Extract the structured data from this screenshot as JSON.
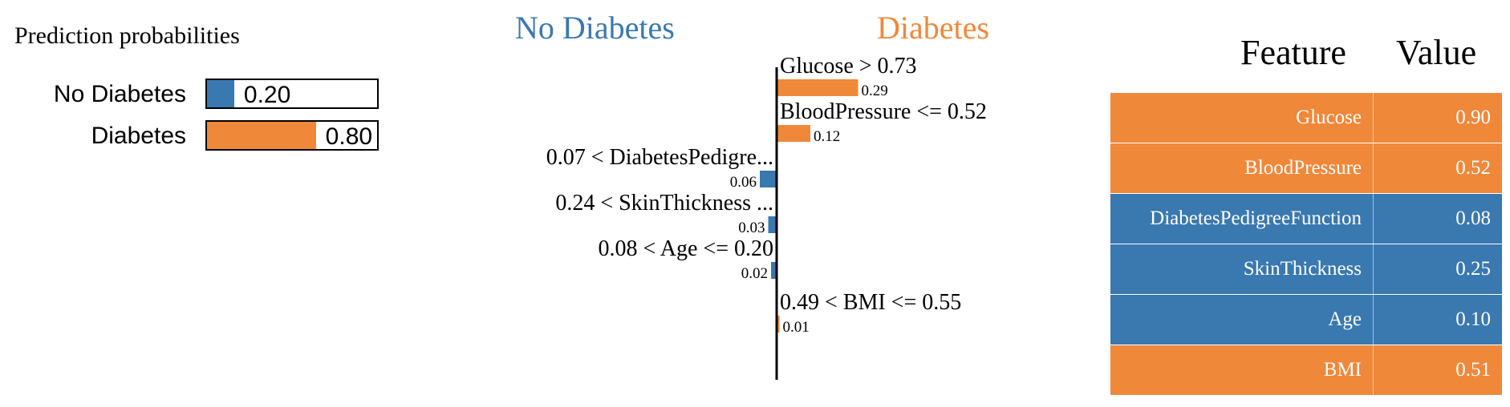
{
  "colors": {
    "no_diabetes": "#3a78b0",
    "diabetes": "#f0883a"
  },
  "chart_data": [
    {
      "type": "bar",
      "title": "Prediction probabilities",
      "categories": [
        "No Diabetes",
        "Diabetes"
      ],
      "values": [
        0.2,
        0.8
      ],
      "value_labels": [
        "0.20",
        "0.80"
      ],
      "xlim": [
        0,
        1
      ]
    },
    {
      "type": "bar",
      "orientation": "horizontal",
      "class_labels": {
        "negative": "No Diabetes",
        "positive": "Diabetes"
      },
      "items": [
        {
          "condition": "Glucose > 0.73",
          "weight": 0.29,
          "weight_label": "0.29"
        },
        {
          "condition": "BloodPressure <= 0.52",
          "weight": 0.12,
          "weight_label": "0.12"
        },
        {
          "condition": "0.07 < DiabetesPedigre...",
          "weight": -0.06,
          "weight_label": "0.06"
        },
        {
          "condition": "0.24 < SkinThickness ...",
          "weight": -0.03,
          "weight_label": "0.03"
        },
        {
          "condition": "0.08 < Age <= 0.20",
          "weight": -0.02,
          "weight_label": "0.02"
        },
        {
          "condition": "0.49 < BMI <= 0.55",
          "weight": 0.01,
          "weight_label": "0.01"
        }
      ]
    },
    {
      "type": "table",
      "columns": [
        "Feature",
        "Value"
      ],
      "rows": [
        {
          "feature": "Glucose",
          "value": "0.90",
          "class": "diabetes"
        },
        {
          "feature": "BloodPressure",
          "value": "0.52",
          "class": "diabetes"
        },
        {
          "feature": "DiabetesPedigreeFunction",
          "value": "0.08",
          "class": "no_diabetes"
        },
        {
          "feature": "SkinThickness",
          "value": "0.25",
          "class": "no_diabetes"
        },
        {
          "feature": "Age",
          "value": "0.10",
          "class": "no_diabetes"
        },
        {
          "feature": "BMI",
          "value": "0.51",
          "class": "diabetes"
        }
      ]
    }
  ]
}
